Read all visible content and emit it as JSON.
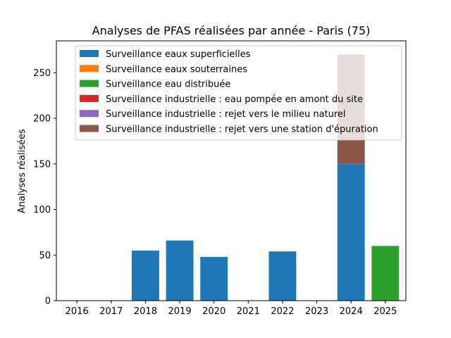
{
  "chart_data": {
    "type": "bar",
    "stacked": true,
    "title": "Analyses de PFAS réalisées par année - Paris (75)",
    "xlabel": "",
    "ylabel": "Analyses réalisées",
    "categories": [
      "2016",
      "2017",
      "2018",
      "2019",
      "2020",
      "2021",
      "2022",
      "2023",
      "2024",
      "2025"
    ],
    "ylim": [
      0,
      285
    ],
    "yticks": [
      0,
      50,
      100,
      150,
      200,
      250
    ],
    "grid": false,
    "legend_position": "top",
    "series": [
      {
        "name": "Surveillance eaux superficielles",
        "color": "#1f77b4",
        "values": [
          0,
          0,
          55,
          66,
          48,
          0,
          54,
          0,
          150,
          0
        ]
      },
      {
        "name": "Surveillance eaux souterraines",
        "color": "#ff7f0e",
        "values": [
          0,
          0,
          0,
          0,
          0,
          0,
          0,
          0,
          0,
          0
        ]
      },
      {
        "name": "Surveillance eau distribuée",
        "color": "#2ca02c",
        "values": [
          0,
          0,
          0,
          0,
          0,
          0,
          0,
          0,
          0,
          60
        ]
      },
      {
        "name": "Surveillance industrielle : eau pompée en amont du site",
        "color": "#d62728",
        "values": [
          0,
          0,
          0,
          0,
          0,
          0,
          0,
          0,
          0,
          0
        ]
      },
      {
        "name": "Surveillance industrielle : rejet vers le milieu naturel",
        "color": "#9467bd",
        "values": [
          0,
          0,
          0,
          0,
          0,
          0,
          0,
          0,
          0,
          0
        ]
      },
      {
        "name": "Surveillance industrielle : rejet vers une station d'épuration",
        "color": "#8c564b",
        "values": [
          0,
          0,
          0,
          0,
          0,
          0,
          0,
          0,
          120,
          0
        ]
      }
    ]
  }
}
